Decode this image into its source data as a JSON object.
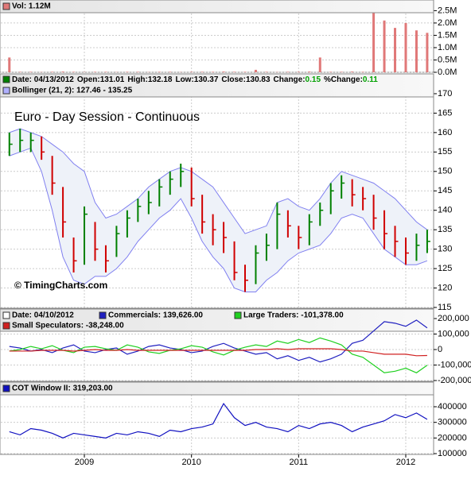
{
  "chart_data": [
    {
      "type": "bar",
      "x": [
        2008.3,
        2008.4,
        2008.5,
        2008.6,
        2008.7,
        2008.8,
        2008.9,
        2009.0,
        2009.1,
        2009.2,
        2009.3,
        2009.4,
        2009.5,
        2009.6,
        2009.7,
        2009.8,
        2009.9,
        2010.0,
        2010.1,
        2010.2,
        2010.3,
        2010.4,
        2010.5,
        2010.6,
        2010.7,
        2010.8,
        2010.9,
        2011.0,
        2011.1,
        2011.2,
        2011.3,
        2011.4,
        2011.5,
        2011.6,
        2011.7,
        2011.8,
        2011.9,
        2012.0,
        2012.1,
        2012.2
      ],
      "xlim": [
        2008.22,
        2012.26
      ],
      "ylim": [
        0,
        2.9
      ],
      "yticks": [
        {
          "value": 0,
          "label": "0.0M"
        },
        {
          "value": 0.5,
          "label": "0.5M"
        },
        {
          "value": 1,
          "label": "1.0M"
        },
        {
          "value": 1.5,
          "label": "1.5M"
        },
        {
          "value": 2,
          "label": "2.0M"
        },
        {
          "value": 2.5,
          "label": "2.5M"
        }
      ],
      "series": [
        {
          "name": "Vol: 1.12M",
          "color": "#e07878",
          "values": [
            0.6,
            0.02,
            0.02,
            0.01,
            0.02,
            0.03,
            0.02,
            0.01,
            0.02,
            0.02,
            0.01,
            0.02,
            0.02,
            0.01,
            0.02,
            0.02,
            0.01,
            0.02,
            0.02,
            0.02,
            0.03,
            0.02,
            0.02,
            0.1,
            0.02,
            0.01,
            0.02,
            0.02,
            0.03,
            0.6,
            0.02,
            0.02,
            0.03,
            0.02,
            2.4,
            2.1,
            1.8,
            2.0,
            1.7,
            1.6
          ]
        }
      ]
    },
    {
      "type": "ohlc",
      "title": "Euro - Day Session - Continuous",
      "annotation": "© TimingCharts.com",
      "header": [
        "Date: 04/13/2012",
        "Open:131.01",
        "High:132.18",
        "Low:130.37",
        "Close:130.83",
        "Change:",
        "0.15",
        "%Change:",
        "0.11"
      ],
      "x": [
        2008.3,
        2008.4,
        2008.5,
        2008.6,
        2008.7,
        2008.8,
        2008.9,
        2009.0,
        2009.1,
        2009.2,
        2009.3,
        2009.4,
        2009.5,
        2009.6,
        2009.7,
        2009.8,
        2009.9,
        2010.0,
        2010.1,
        2010.2,
        2010.3,
        2010.4,
        2010.5,
        2010.6,
        2010.7,
        2010.8,
        2010.9,
        2011.0,
        2011.1,
        2011.2,
        2011.3,
        2011.4,
        2011.5,
        2011.6,
        2011.7,
        2011.8,
        2011.9,
        2012.0,
        2012.1,
        2012.2
      ],
      "xlim": [
        2008.22,
        2012.26
      ],
      "ylim": [
        114.8,
        175.1
      ],
      "yticks": [
        115,
        120,
        125,
        130,
        135,
        140,
        145,
        150,
        155,
        160,
        165,
        170
      ],
      "up_color": "#008000",
      "down_color": "#d00000",
      "high": [
        160,
        161,
        160,
        159,
        154,
        146,
        133,
        141,
        137,
        131,
        136,
        140,
        143,
        145,
        148,
        150,
        152,
        151,
        144,
        139,
        137,
        132,
        126,
        131,
        134,
        142,
        140,
        136,
        139,
        142,
        147,
        149,
        148,
        146,
        144,
        140,
        136,
        133,
        134,
        135
      ],
      "low": [
        154,
        155,
        155,
        153,
        144,
        133,
        124,
        126,
        127,
        124,
        128,
        133,
        137,
        139,
        141,
        144,
        146,
        141,
        134,
        131,
        129,
        122,
        119,
        121,
        127,
        130,
        133,
        130,
        131,
        136,
        139,
        143,
        141,
        140,
        135,
        130,
        128,
        126,
        127,
        129
      ],
      "close": [
        157,
        158,
        158,
        155,
        147,
        137,
        127,
        139,
        130,
        127,
        134,
        138,
        141,
        142,
        146,
        148,
        150,
        143,
        137,
        135,
        133,
        124,
        122,
        129,
        131,
        139,
        136,
        133,
        137,
        140,
        145,
        147,
        144,
        143,
        138,
        134,
        132,
        129,
        131,
        132
      ],
      "bollinger": {
        "name": "Bollinger (21, 2): 127.46 - 135.25",
        "color": "#8080f0",
        "upper": [
          160,
          161,
          160,
          159,
          157,
          155,
          152,
          150,
          142,
          138,
          139,
          141,
          143,
          146,
          148,
          150,
          151,
          150,
          148,
          146,
          142,
          138,
          134,
          135,
          136,
          142,
          143,
          141,
          140,
          143,
          147,
          150,
          149,
          148,
          147,
          145,
          143,
          140,
          137,
          135
        ],
        "lower": [
          154,
          155,
          156,
          150,
          140,
          128,
          122,
          121,
          123,
          123,
          125,
          128,
          132,
          135,
          138,
          140,
          143,
          138,
          132,
          128,
          125,
          120,
          119,
          119,
          122,
          124,
          127,
          129,
          130,
          131,
          134,
          138,
          139,
          138,
          134,
          130,
          128,
          126,
          126,
          127
        ]
      }
    },
    {
      "type": "line",
      "header": [
        "Date: 04/10/2012"
      ],
      "x": [
        2008.3,
        2008.4,
        2008.5,
        2008.6,
        2008.7,
        2008.8,
        2008.9,
        2009.0,
        2009.1,
        2009.2,
        2009.3,
        2009.4,
        2009.5,
        2009.6,
        2009.7,
        2009.8,
        2009.9,
        2010.0,
        2010.1,
        2010.2,
        2010.3,
        2010.4,
        2010.5,
        2010.6,
        2010.7,
        2010.8,
        2010.9,
        2011.0,
        2011.1,
        2011.2,
        2011.3,
        2011.4,
        2011.5,
        2011.6,
        2011.7,
        2011.8,
        2011.9,
        2012.0,
        2012.1,
        2012.2
      ],
      "xlim": [
        2008.22,
        2012.26
      ],
      "ylim": [
        -205000,
        261500
      ],
      "yticks": [
        {
          "value": -200000,
          "label": "-200,000"
        },
        {
          "value": -100000,
          "label": "-100,000"
        },
        0,
        {
          "value": 100000,
          "label": "100,000"
        },
        {
          "value": 200000,
          "label": "200,000"
        }
      ],
      "series": [
        {
          "name": "Commercials: 139,626.00",
          "color": "#2020c0",
          "values": [
            20000,
            10000,
            -10000,
            0,
            -20000,
            10000,
            30000,
            -10000,
            -20000,
            0,
            10000,
            -30000,
            -10000,
            20000,
            30000,
            10000,
            0,
            -20000,
            -10000,
            20000,
            40000,
            10000,
            -10000,
            -30000,
            -20000,
            -60000,
            -40000,
            -70000,
            -50000,
            -80000,
            -60000,
            -30000,
            40000,
            60000,
            120000,
            180000,
            170000,
            150000,
            190000,
            139626
          ]
        },
        {
          "name": "Large Traders: -101,378.00",
          "color": "#20d020",
          "values": [
            -10000,
            0,
            20000,
            5000,
            25000,
            -5000,
            -20000,
            15000,
            20000,
            5000,
            -5000,
            30000,
            15000,
            -15000,
            -25000,
            -5000,
            5000,
            25000,
            15000,
            -15000,
            -35000,
            -5000,
            15000,
            30000,
            20000,
            55000,
            40000,
            65000,
            45000,
            75000,
            55000,
            30000,
            -30000,
            -50000,
            -100000,
            -150000,
            -140000,
            -120000,
            -150000,
            -101378
          ]
        },
        {
          "name": "Small Speculators: -38,248.00",
          "color": "#d02020",
          "values": [
            -10000,
            -10000,
            -10000,
            -5000,
            -5000,
            -5000,
            -10000,
            -5000,
            0,
            -5000,
            -5000,
            0,
            -5000,
            -5000,
            -5000,
            -5000,
            -5000,
            -5000,
            -5000,
            -5000,
            -5000,
            -5000,
            -5000,
            0,
            0,
            5000,
            0,
            5000,
            5000,
            5000,
            5000,
            0,
            -10000,
            -10000,
            -20000,
            -30000,
            -30000,
            -30000,
            -40000,
            -38248
          ]
        }
      ]
    },
    {
      "type": "line",
      "x": [
        2008.3,
        2008.4,
        2008.5,
        2008.6,
        2008.7,
        2008.8,
        2008.9,
        2009.0,
        2009.1,
        2009.2,
        2009.3,
        2009.4,
        2009.5,
        2009.6,
        2009.7,
        2009.8,
        2009.9,
        2010.0,
        2010.1,
        2010.2,
        2010.3,
        2010.4,
        2010.5,
        2010.6,
        2010.7,
        2010.8,
        2010.9,
        2011.0,
        2011.1,
        2011.2,
        2011.3,
        2011.4,
        2011.5,
        2011.6,
        2011.7,
        2011.8,
        2011.9,
        2012.0,
        2012.1,
        2012.2
      ],
      "xlim": [
        2008.22,
        2012.26
      ],
      "ylim": [
        95000,
        557600
      ],
      "yticks": [
        100000,
        200000,
        300000,
        400000
      ],
      "xticks": [
        2009,
        2010,
        2011,
        2012
      ],
      "series": [
        {
          "name": "COT Window II: 319,203.00",
          "color": "#1010c0",
          "values": [
            240000,
            220000,
            260000,
            250000,
            230000,
            200000,
            230000,
            220000,
            210000,
            200000,
            230000,
            220000,
            240000,
            230000,
            210000,
            250000,
            240000,
            260000,
            270000,
            290000,
            420000,
            330000,
            280000,
            300000,
            270000,
            260000,
            240000,
            280000,
            260000,
            290000,
            300000,
            280000,
            240000,
            270000,
            290000,
            310000,
            350000,
            330000,
            360000,
            319203
          ]
        }
      ]
    }
  ]
}
